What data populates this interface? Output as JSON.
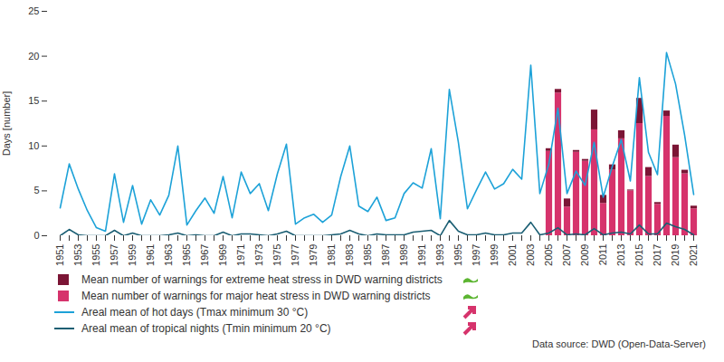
{
  "chart_data": {
    "type": "bar",
    "y_label": "Days [number]",
    "caption": "Data source: DWD (Open-Data-Server)",
    "categories": [
      1951,
      null,
      1953,
      null,
      1955,
      null,
      1957,
      null,
      1959,
      null,
      1961,
      null,
      1963,
      null,
      1965,
      null,
      1967,
      null,
      1969,
      null,
      1971,
      null,
      1973,
      null,
      1975,
      null,
      1977,
      null,
      1979,
      null,
      1981,
      null,
      1983,
      null,
      1985,
      null,
      1987,
      null,
      1989,
      null,
      1991,
      null,
      1993,
      null,
      1995,
      null,
      1997,
      null,
      1999,
      null,
      2001,
      null,
      2003,
      null,
      2005,
      null,
      2007,
      null,
      2009,
      null,
      2011,
      null,
      2013,
      null,
      2015,
      null,
      2017,
      null,
      2019,
      null,
      2021
    ],
    "ylim": [
      0,
      25
    ],
    "yticks": [
      0,
      5,
      10,
      15,
      20,
      25
    ],
    "grid": false,
    "legend": "bottom",
    "stacked": true,
    "series": [
      {
        "name": "Mean number of warnings for extreme heat stress in DWD warning districts",
        "type": "bar",
        "color": "#7b1535",
        "values": [
          null,
          null,
          null,
          null,
          null,
          null,
          null,
          null,
          null,
          null,
          null,
          null,
          null,
          null,
          null,
          null,
          null,
          null,
          null,
          null,
          null,
          null,
          null,
          null,
          null,
          null,
          null,
          null,
          null,
          null,
          null,
          null,
          null,
          null,
          null,
          null,
          null,
          null,
          null,
          null,
          null,
          null,
          null,
          null,
          null,
          null,
          null,
          null,
          null,
          null,
          null,
          null,
          null,
          null,
          0.3,
          0.4,
          0.9,
          0.2,
          0.2,
          2.2,
          0.9,
          0.6,
          0.9,
          0.1,
          2.8,
          1.0,
          0.2,
          0.6,
          1.4,
          0.4,
          0.3
        ]
      },
      {
        "name": "Mean number of warnings for major heat stress in DWD warning districts",
        "type": "bar",
        "color": "#d6336c",
        "values": [
          null,
          null,
          null,
          null,
          null,
          null,
          null,
          null,
          null,
          null,
          null,
          null,
          null,
          null,
          null,
          null,
          null,
          null,
          null,
          null,
          null,
          null,
          null,
          null,
          null,
          null,
          null,
          null,
          null,
          null,
          null,
          null,
          null,
          null,
          null,
          null,
          null,
          null,
          null,
          null,
          null,
          null,
          null,
          null,
          null,
          null,
          null,
          null,
          null,
          null,
          null,
          null,
          null,
          null,
          9.4,
          15.9,
          3.2,
          9.3,
          8.3,
          11.8,
          3.6,
          7.3,
          10.8,
          5.0,
          12.5,
          6.6,
          3.5,
          13.3,
          8.7,
          6.9,
          3.0
        ]
      },
      {
        "name": "Areal mean of hot days (Tmax minimum 30 °C)",
        "type": "line",
        "color": "#1da2d8",
        "values": [
          3.1,
          8.0,
          5.2,
          2.8,
          0.9,
          0.5,
          6.9,
          1.5,
          5.6,
          1.3,
          4.0,
          2.3,
          4.5,
          10.0,
          1.2,
          2.8,
          4.2,
          2.5,
          6.6,
          2.0,
          7.1,
          4.7,
          5.8,
          2.8,
          6.9,
          10.2,
          1.3,
          2.0,
          2.4,
          1.5,
          2.3,
          6.6,
          10.0,
          3.3,
          2.7,
          4.3,
          1.7,
          2.0,
          4.7,
          5.9,
          5.3,
          9.7,
          1.9,
          16.3,
          10.4,
          3.0,
          5.1,
          7.1,
          5.2,
          5.8,
          7.4,
          6.3,
          19.0,
          4.7,
          8.0,
          14.2,
          4.7,
          7.2,
          5.6,
          10.4,
          4.3,
          7.7,
          10.7,
          6.1,
          17.6,
          9.3,
          6.8,
          20.4,
          16.9,
          11.2,
          4.6
        ]
      },
      {
        "name": "Areal mean of tropical nights (Tmin minimum 20 °C)",
        "type": "line",
        "color": "#1a5e73",
        "values": [
          0.0,
          0.7,
          0.1,
          0.0,
          0.0,
          0.0,
          0.6,
          0.0,
          0.3,
          0.0,
          0.0,
          0.0,
          0.1,
          0.3,
          0.0,
          0.1,
          0.0,
          0.0,
          0.4,
          0.0,
          0.2,
          0.2,
          0.1,
          0.0,
          0.2,
          0.5,
          0.0,
          0.0,
          0.0,
          0.0,
          0.1,
          0.2,
          0.6,
          0.2,
          0.0,
          0.2,
          0.1,
          0.1,
          0.1,
          0.4,
          0.5,
          0.6,
          0.0,
          1.7,
          0.5,
          0.1,
          0.1,
          0.3,
          0.1,
          0.1,
          0.3,
          0.3,
          1.5,
          0.1,
          0.3,
          0.9,
          0.1,
          0.2,
          0.1,
          0.8,
          0.1,
          0.3,
          0.4,
          0.2,
          1.2,
          0.2,
          0.2,
          1.4,
          1.0,
          0.7,
          0.1
        ]
      }
    ]
  }
}
